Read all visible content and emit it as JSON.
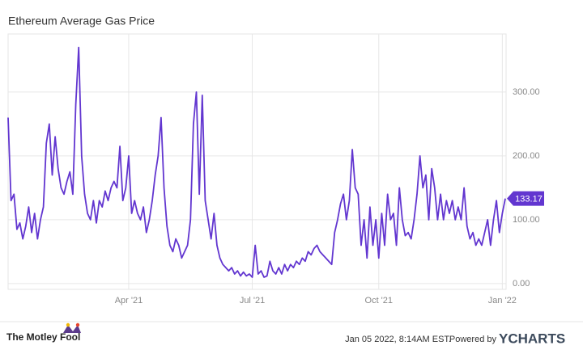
{
  "chart_data": {
    "type": "line",
    "title": "Ethereum Average Gas Price",
    "categories": [
      null,
      null,
      null,
      null,
      null,
      null,
      null,
      null,
      null,
      null,
      null,
      null,
      null,
      null,
      null,
      null,
      null,
      null,
      null,
      null,
      null,
      null,
      null,
      null,
      null,
      null,
      null,
      null,
      null,
      null,
      null,
      null,
      null,
      null,
      null,
      null,
      null,
      null,
      null,
      null,
      null,
      "Apr '21",
      null,
      null,
      null,
      null,
      null,
      null,
      null,
      null,
      null,
      null,
      null,
      null,
      null,
      null,
      null,
      null,
      null,
      null,
      null,
      null,
      null,
      null,
      null,
      null,
      null,
      null,
      null,
      null,
      null,
      null,
      null,
      null,
      null,
      null,
      null,
      null,
      null,
      null,
      null,
      null,
      null,
      "Jul '21",
      null,
      null,
      null,
      null,
      null,
      null,
      null,
      null,
      null,
      null,
      null,
      null,
      null,
      null,
      null,
      null,
      null,
      null,
      null,
      null,
      null,
      null,
      null,
      null,
      null,
      null,
      null,
      null,
      null,
      null,
      null,
      null,
      null,
      null,
      null,
      null,
      null,
      null,
      null,
      null,
      null,
      null,
      "Oct '21",
      null,
      null,
      null,
      null,
      null,
      null,
      null,
      null,
      null,
      null,
      null,
      null,
      null,
      null,
      null,
      null,
      null,
      null,
      null,
      null,
      null,
      null,
      null,
      null,
      null,
      null,
      null,
      null,
      null,
      null,
      null,
      null,
      null,
      null,
      null,
      null,
      null,
      null,
      null,
      null,
      null,
      "Jan '22",
      null
    ],
    "series": [
      {
        "name": "Ethereum Average Gas Price",
        "color": "#6236d0",
        "values": [
          260,
          130,
          140,
          85,
          95,
          70,
          90,
          120,
          80,
          110,
          70,
          100,
          120,
          220,
          250,
          170,
          230,
          180,
          150,
          140,
          160,
          175,
          140,
          280,
          370,
          200,
          140,
          110,
          100,
          130,
          95,
          130,
          120,
          145,
          130,
          150,
          160,
          150,
          215,
          130,
          150,
          200,
          110,
          130,
          110,
          100,
          120,
          80,
          100,
          130,
          170,
          200,
          260,
          150,
          90,
          60,
          50,
          70,
          60,
          40,
          50,
          60,
          100,
          250,
          300,
          140,
          295,
          130,
          100,
          70,
          110,
          60,
          40,
          30,
          25,
          20,
          25,
          15,
          20,
          12,
          18,
          12,
          15,
          10,
          60,
          15,
          20,
          10,
          12,
          35,
          20,
          15,
          25,
          15,
          30,
          20,
          30,
          25,
          35,
          30,
          40,
          35,
          50,
          45,
          55,
          60,
          50,
          45,
          40,
          35,
          30,
          80,
          100,
          125,
          140,
          100,
          130,
          210,
          150,
          140,
          60,
          100,
          40,
          120,
          60,
          100,
          40,
          110,
          60,
          140,
          100,
          110,
          60,
          150,
          100,
          75,
          80,
          70,
          100,
          140,
          200,
          150,
          170,
          100,
          180,
          150,
          100,
          140,
          100,
          130,
          110,
          130,
          100,
          120,
          100,
          150,
          90,
          70,
          80,
          60,
          70,
          60,
          80,
          100,
          60,
          100,
          130,
          80,
          110,
          133.17
        ]
      }
    ],
    "ylim": [
      -9,
      391
    ],
    "yticks": [
      {
        "value": 0,
        "label": "0.00"
      },
      {
        "value": 100,
        "label": "100.00"
      },
      {
        "value": 200,
        "label": "200.00"
      },
      {
        "value": 300,
        "label": "300.00"
      }
    ],
    "grid": true
  },
  "branding": {
    "publisher": "The Motley Fool",
    "timestamp": "Jan 05 2022, 8:14AM EST.",
    "powered_by": "Powered by",
    "provider": "YCHARTS"
  }
}
